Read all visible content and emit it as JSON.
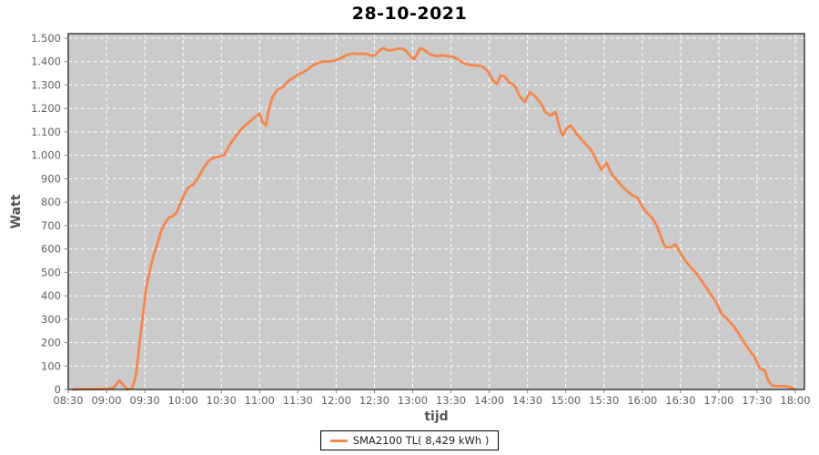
{
  "title": "28-10-2021",
  "colors": {
    "line": "#F4874E",
    "plot_bg": "#CBCBCB",
    "grid": "#FFFFFF",
    "plot_border": "#111111",
    "tick_mark": "#777777",
    "tick_text": "#5f5f5f",
    "axis_label_text": "#555555",
    "title_text": "#000000",
    "legend_border": "#000000",
    "legend_bg": "#FFFFFF"
  },
  "legend": {
    "label": "SMA2100 TL( 8,429 kWh )",
    "position": "bottom-center"
  },
  "chart_data": {
    "type": "line",
    "title": "28-10-2021",
    "xlabel": "tijd",
    "ylabel": "Watt",
    "grid": true,
    "ylim": [
      0,
      1500
    ],
    "xlim": [
      "08:30",
      "18:00"
    ],
    "x_ticks": [
      "08:30",
      "09:00",
      "09:30",
      "10:00",
      "10:30",
      "11:00",
      "11:30",
      "12:00",
      "12:30",
      "13:00",
      "13:30",
      "14:00",
      "14:30",
      "15:00",
      "15:30",
      "16:00",
      "16:30",
      "17:00",
      "17:30",
      "18:00"
    ],
    "y_ticks": [
      0,
      100,
      200,
      300,
      400,
      500,
      600,
      700,
      800,
      900,
      1000,
      1100,
      1200,
      1300,
      1400,
      1500
    ],
    "y_tick_labels": [
      "0",
      "100",
      "200",
      "300",
      "400",
      "500",
      "600",
      "700",
      "800",
      "900",
      "1.000",
      "1.100",
      "1.200",
      "1.300",
      "1.400",
      "1.500"
    ],
    "legend_position": "bottom-center",
    "series": [
      {
        "name": "SMA2100 TL( 8,429 kWh )",
        "color": "#F4874E",
        "points": [
          [
            "08:34",
            0
          ],
          [
            "08:40",
            2
          ],
          [
            "08:48",
            2
          ],
          [
            "08:56",
            2
          ],
          [
            "09:02",
            4
          ],
          [
            "09:06",
            10
          ],
          [
            "09:10",
            38
          ],
          [
            "09:13",
            20
          ],
          [
            "09:16",
            2
          ],
          [
            "09:20",
            4
          ],
          [
            "09:23",
            60
          ],
          [
            "09:25",
            150
          ],
          [
            "09:27",
            250
          ],
          [
            "09:29",
            340
          ],
          [
            "09:31",
            430
          ],
          [
            "09:34",
            510
          ],
          [
            "09:37",
            575
          ],
          [
            "09:40",
            625
          ],
          [
            "09:43",
            680
          ],
          [
            "09:46",
            710
          ],
          [
            "09:49",
            735
          ],
          [
            "09:52",
            740
          ],
          [
            "09:55",
            755
          ],
          [
            "09:58",
            795
          ],
          [
            "10:01",
            835
          ],
          [
            "10:04",
            862
          ],
          [
            "10:08",
            875
          ],
          [
            "10:12",
            905
          ],
          [
            "10:16",
            945
          ],
          [
            "10:20",
            975
          ],
          [
            "10:24",
            990
          ],
          [
            "10:28",
            995
          ],
          [
            "10:32",
            1000
          ],
          [
            "10:36",
            1040
          ],
          [
            "10:40",
            1072
          ],
          [
            "10:44",
            1100
          ],
          [
            "10:48",
            1125
          ],
          [
            "10:52",
            1142
          ],
          [
            "10:56",
            1162
          ],
          [
            "11:00",
            1178
          ],
          [
            "11:02",
            1145
          ],
          [
            "11:05",
            1127
          ],
          [
            "11:07",
            1190
          ],
          [
            "11:10",
            1248
          ],
          [
            "11:14",
            1280
          ],
          [
            "11:18",
            1290
          ],
          [
            "11:23",
            1320
          ],
          [
            "11:27",
            1332
          ],
          [
            "11:30",
            1345
          ],
          [
            "11:34",
            1355
          ],
          [
            "11:37",
            1364
          ],
          [
            "11:41",
            1382
          ],
          [
            "11:45",
            1392
          ],
          [
            "11:49",
            1400
          ],
          [
            "11:53",
            1400
          ],
          [
            "11:57",
            1402
          ],
          [
            "12:01",
            1408
          ],
          [
            "12:05",
            1418
          ],
          [
            "12:09",
            1430
          ],
          [
            "12:13",
            1435
          ],
          [
            "12:17",
            1433
          ],
          [
            "12:21",
            1434
          ],
          [
            "12:25",
            1432
          ],
          [
            "12:28",
            1424
          ],
          [
            "12:31",
            1430
          ],
          [
            "12:34",
            1448
          ],
          [
            "12:37",
            1458
          ],
          [
            "12:40",
            1450
          ],
          [
            "12:43",
            1448
          ],
          [
            "12:46",
            1452
          ],
          [
            "12:49",
            1456
          ],
          [
            "12:52",
            1455
          ],
          [
            "12:55",
            1446
          ],
          [
            "12:58",
            1424
          ],
          [
            "13:01",
            1410
          ],
          [
            "13:04",
            1438
          ],
          [
            "13:06",
            1458
          ],
          [
            "13:09",
            1450
          ],
          [
            "13:12",
            1437
          ],
          [
            "13:15",
            1428
          ],
          [
            "13:19",
            1424
          ],
          [
            "13:23",
            1426
          ],
          [
            "13:27",
            1424
          ],
          [
            "13:31",
            1422
          ],
          [
            "13:35",
            1412
          ],
          [
            "13:39",
            1396
          ],
          [
            "13:43",
            1388
          ],
          [
            "13:47",
            1384
          ],
          [
            "13:51",
            1384
          ],
          [
            "13:55",
            1378
          ],
          [
            "13:59",
            1358
          ],
          [
            "14:03",
            1320
          ],
          [
            "14:06",
            1303
          ],
          [
            "14:09",
            1342
          ],
          [
            "14:12",
            1337
          ],
          [
            "14:16",
            1310
          ],
          [
            "14:20",
            1298
          ],
          [
            "14:24",
            1252
          ],
          [
            "14:28",
            1228
          ],
          [
            "14:32",
            1270
          ],
          [
            "14:36",
            1252
          ],
          [
            "14:40",
            1226
          ],
          [
            "14:44",
            1185
          ],
          [
            "14:48",
            1170
          ],
          [
            "14:52",
            1185
          ],
          [
            "14:56",
            1100
          ],
          [
            "14:58",
            1085
          ],
          [
            "15:01",
            1118
          ],
          [
            "15:04",
            1127
          ],
          [
            "15:08",
            1095
          ],
          [
            "15:12",
            1070
          ],
          [
            "15:16",
            1045
          ],
          [
            "15:20",
            1022
          ],
          [
            "15:24",
            980
          ],
          [
            "15:28",
            938
          ],
          [
            "15:32",
            968
          ],
          [
            "15:36",
            920
          ],
          [
            "15:40",
            895
          ],
          [
            "15:44",
            868
          ],
          [
            "15:48",
            848
          ],
          [
            "15:52",
            830
          ],
          [
            "15:56",
            820
          ],
          [
            "16:00",
            782
          ],
          [
            "16:04",
            752
          ],
          [
            "16:08",
            732
          ],
          [
            "16:12",
            692
          ],
          [
            "16:15",
            645
          ],
          [
            "16:18",
            610
          ],
          [
            "16:22",
            606
          ],
          [
            "16:26",
            620
          ],
          [
            "16:30",
            582
          ],
          [
            "16:34",
            548
          ],
          [
            "16:38",
            522
          ],
          [
            "16:43",
            492
          ],
          [
            "16:48",
            452
          ],
          [
            "16:53",
            412
          ],
          [
            "16:58",
            372
          ],
          [
            "17:02",
            325
          ],
          [
            "17:07",
            298
          ],
          [
            "17:12",
            268
          ],
          [
            "17:16",
            235
          ],
          [
            "17:20",
            200
          ],
          [
            "17:24",
            168
          ],
          [
            "17:28",
            140
          ],
          [
            "17:32",
            90
          ],
          [
            "17:36",
            82
          ],
          [
            "17:39",
            35
          ],
          [
            "17:42",
            16
          ],
          [
            "17:47",
            14
          ],
          [
            "17:52",
            14
          ],
          [
            "17:56",
            10
          ],
          [
            "17:59",
            2
          ]
        ]
      }
    ]
  }
}
